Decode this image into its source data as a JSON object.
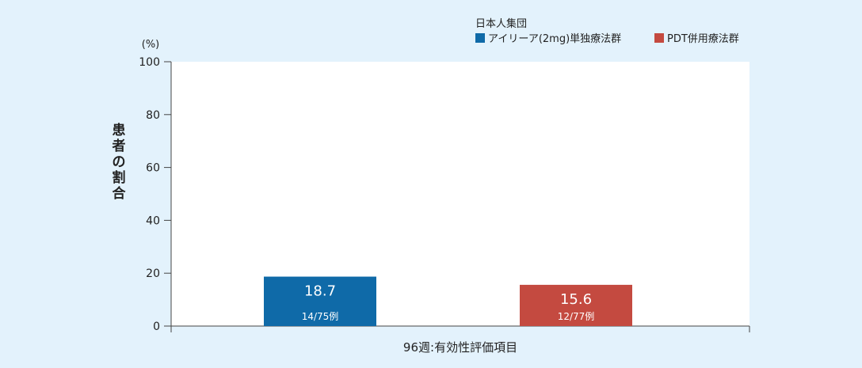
{
  "chart_data": {
    "type": "bar",
    "ylabel": "患者の割合",
    "yunit": "(%)",
    "xlabel": "96週:有効性評価項目",
    "ylim": [
      0,
      100
    ],
    "yticks": [
      0,
      20,
      40,
      60,
      80,
      100
    ],
    "legend": {
      "title": "日本人集団",
      "position": "top-right"
    },
    "series": [
      {
        "name": "アイリーア(2mg)単独療法群",
        "value": 18.7,
        "value_label": "18.7",
        "sub_label": "14/75例",
        "color": "#0f6aa8"
      },
      {
        "name": "PDT併用療法群",
        "value": 15.6,
        "value_label": "15.6",
        "sub_label": "12/77例",
        "color": "#c44a40"
      }
    ]
  }
}
